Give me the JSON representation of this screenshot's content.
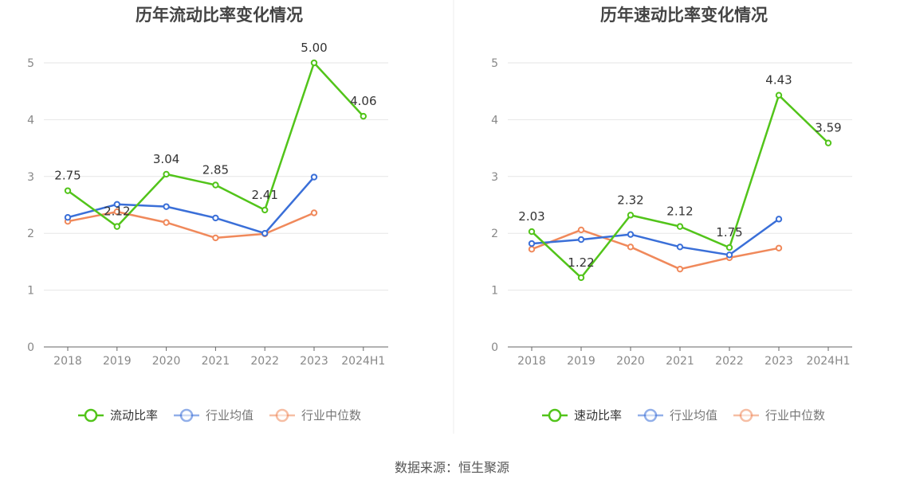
{
  "colors": {
    "series_main": "#52c41a",
    "series_avg": "#3a6fd8",
    "series_median": "#f0895b",
    "grid": "#e6e6e6",
    "axis": "#666666",
    "tick_text": "#888888",
    "title_text": "#444444",
    "label_text": "#333333",
    "divider": "#eeeeee"
  },
  "chart_data": [
    {
      "type": "line",
      "title": "历年流动比率变化情况",
      "categories": [
        "2018",
        "2019",
        "2020",
        "2021",
        "2022",
        "2023",
        "2024H1"
      ],
      "yticks": [
        "0",
        "1",
        "2",
        "3",
        "4",
        "5"
      ],
      "ylim": [
        0,
        5
      ],
      "grid": true,
      "legend_position": "bottom",
      "series": [
        {
          "name": "流动比率",
          "values": [
            2.75,
            2.12,
            3.04,
            2.85,
            2.41,
            5.0,
            4.06
          ],
          "labels": [
            "2.75",
            "2.12",
            "3.04",
            "2.85",
            "2.41",
            "5.00",
            "4.06"
          ]
        },
        {
          "name": "行业均值",
          "values": [
            2.28,
            2.51,
            2.47,
            2.27,
            2.0,
            2.99,
            null
          ]
        },
        {
          "name": "行业中位数",
          "values": [
            2.21,
            2.38,
            2.19,
            1.92,
            1.99,
            2.36,
            null
          ]
        }
      ]
    },
    {
      "type": "line",
      "title": "历年速动比率变化情况",
      "categories": [
        "2018",
        "2019",
        "2020",
        "2021",
        "2022",
        "2023",
        "2024H1"
      ],
      "yticks": [
        "0",
        "1",
        "2",
        "3",
        "4",
        "5"
      ],
      "ylim": [
        0,
        5
      ],
      "grid": true,
      "legend_position": "bottom",
      "series": [
        {
          "name": "速动比率",
          "values": [
            2.03,
            1.22,
            2.32,
            2.12,
            1.75,
            4.43,
            3.59
          ],
          "labels": [
            "2.03",
            "1.22",
            "2.32",
            "2.12",
            "1.75",
            "4.43",
            "3.59"
          ]
        },
        {
          "name": "行业均值",
          "values": [
            1.82,
            1.89,
            1.98,
            1.76,
            1.62,
            2.25,
            null
          ]
        },
        {
          "name": "行业中位数",
          "values": [
            1.72,
            2.06,
            1.76,
            1.37,
            1.57,
            1.74,
            null
          ]
        }
      ]
    }
  ],
  "footer": {
    "source": "数据来源：恒生聚源"
  }
}
